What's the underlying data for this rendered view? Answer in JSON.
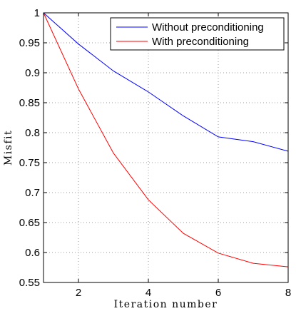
{
  "chart_data": {
    "type": "line",
    "title": "",
    "xlabel": "Iteration number",
    "ylabel": "Misfit",
    "xlim": [
      1,
      8
    ],
    "ylim": [
      0.55,
      1
    ],
    "xticks": [
      2,
      4,
      6,
      8
    ],
    "yticks": [
      0.55,
      0.6,
      0.65,
      0.7,
      0.75,
      0.8,
      0.85,
      0.9,
      0.95,
      1
    ],
    "ytick_labels": [
      "0.55",
      "0.6",
      "0.65",
      "0.7",
      "0.75",
      "0.8",
      "0.85",
      "0.9",
      "0.95",
      "1"
    ],
    "grid": "dotted",
    "legend_position": "top-right",
    "x": [
      1,
      2,
      3,
      4,
      5,
      6,
      7,
      8
    ],
    "series": [
      {
        "name": "Without preconditioning",
        "color": "#0000ff",
        "values": [
          1.0,
          0.948,
          0.903,
          0.868,
          0.828,
          0.793,
          0.785,
          0.769
        ]
      },
      {
        "name": "With preconditioning",
        "color": "#ff0000",
        "values": [
          1.0,
          0.873,
          0.766,
          0.688,
          0.632,
          0.599,
          0.582,
          0.576
        ]
      }
    ]
  }
}
